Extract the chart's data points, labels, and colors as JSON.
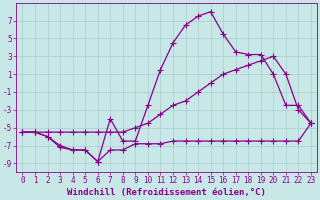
{
  "xlabel": "Windchill (Refroidissement éolien,°C)",
  "ylabel": "",
  "bg_color": "#c8e8e8",
  "line_color": "#880088",
  "grid_color": "#aacccc",
  "x_values": [
    0,
    1,
    2,
    3,
    4,
    5,
    6,
    7,
    8,
    9,
    10,
    11,
    12,
    13,
    14,
    15,
    16,
    17,
    18,
    19,
    20,
    21,
    22,
    23
  ],
  "line1": [
    -5.5,
    -5.5,
    -6.0,
    -7.2,
    -7.5,
    -7.5,
    -8.8,
    -7.5,
    -7.5,
    -6.8,
    -6.8,
    -6.8,
    -6.5,
    -6.5,
    -6.5,
    -6.5,
    -6.5,
    -6.5,
    -6.5,
    -6.5,
    -6.5,
    -6.5,
    -6.5,
    -4.5
  ],
  "line2": [
    -5.5,
    -5.5,
    -6.0,
    -7.0,
    -7.5,
    -7.5,
    -8.8,
    -4.0,
    -6.5,
    -6.5,
    -2.5,
    1.5,
    4.5,
    6.5,
    7.5,
    8.0,
    5.5,
    3.5,
    3.2,
    3.2,
    1.0,
    -2.5,
    -2.5,
    -4.5
  ],
  "line3": [
    -5.5,
    -5.5,
    -5.5,
    -5.5,
    -5.5,
    -5.5,
    -5.5,
    -5.5,
    -5.5,
    -5.0,
    -4.5,
    -3.5,
    -2.5,
    -2.0,
    -1.0,
    0.0,
    1.0,
    1.5,
    2.0,
    2.5,
    3.0,
    1.0,
    -3.0,
    -4.5
  ],
  "ylim": [
    -10,
    9
  ],
  "xlim": [
    -0.5,
    23.5
  ],
  "yticks": [
    -9,
    -7,
    -5,
    -3,
    -1,
    1,
    3,
    5,
    7
  ],
  "xticks": [
    0,
    1,
    2,
    3,
    4,
    5,
    6,
    7,
    8,
    9,
    10,
    11,
    12,
    13,
    14,
    15,
    16,
    17,
    18,
    19,
    20,
    21,
    22,
    23
  ],
  "marker": "+",
  "markersize": 4,
  "linewidth": 0.9,
  "xlabel_fontsize": 6.5,
  "tick_fontsize": 5.5
}
